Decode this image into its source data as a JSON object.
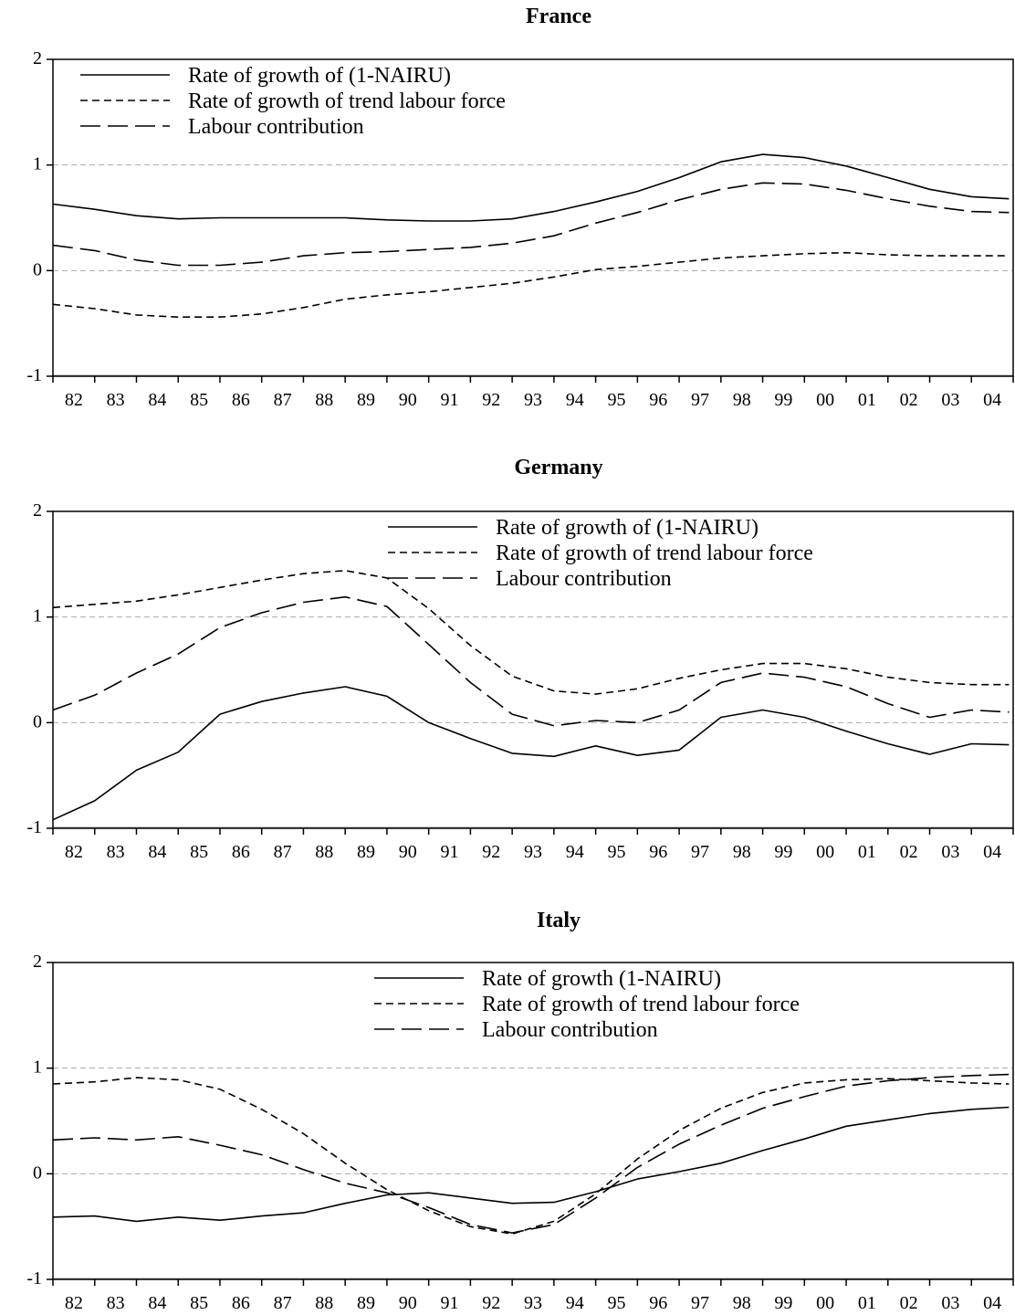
{
  "chart_data": [
    {
      "type": "line",
      "title": "France",
      "xlabel": "",
      "ylabel": "",
      "x_ticks": [
        "82",
        "83",
        "84",
        "85",
        "86",
        "87",
        "88",
        "89",
        "90",
        "91",
        "92",
        "93",
        "94",
        "95",
        "96",
        "97",
        "98",
        "99",
        "00",
        "01",
        "02",
        "03",
        "04"
      ],
      "xlim": [
        1982,
        2005
      ],
      "ylim": [
        -1,
        2
      ],
      "y_ticks": [
        -1,
        0,
        1,
        2
      ],
      "grid": "horizontal-dashed",
      "legend": "top-left",
      "x": [
        1982,
        1983,
        1984,
        1985,
        1986,
        1987,
        1988,
        1989,
        1990,
        1991,
        1992,
        1993,
        1994,
        1995,
        1996,
        1997,
        1998,
        1999,
        2000,
        2001,
        2002,
        2003,
        2004,
        2004.9
      ],
      "series": [
        {
          "name": "Rate of growth of (1-NAIRU)",
          "style": "solid",
          "values": [
            0.63,
            0.58,
            0.52,
            0.49,
            0.5,
            0.5,
            0.5,
            0.5,
            0.48,
            0.47,
            0.47,
            0.49,
            0.56,
            0.65,
            0.75,
            0.88,
            1.03,
            1.1,
            1.07,
            0.99,
            0.88,
            0.77,
            0.7,
            0.68
          ]
        },
        {
          "name": "Rate of growth of trend labour force",
          "style": "short-dash",
          "values": [
            -0.32,
            -0.36,
            -0.42,
            -0.44,
            -0.44,
            -0.41,
            -0.35,
            -0.27,
            -0.23,
            -0.2,
            -0.16,
            -0.12,
            -0.06,
            0.01,
            0.04,
            0.08,
            0.12,
            0.14,
            0.16,
            0.17,
            0.15,
            0.14,
            0.14,
            0.14
          ]
        },
        {
          "name": "Labour contribution",
          "style": "long-dash",
          "values": [
            0.24,
            0.19,
            0.1,
            0.05,
            0.05,
            0.08,
            0.14,
            0.17,
            0.18,
            0.2,
            0.22,
            0.26,
            0.33,
            0.45,
            0.55,
            0.67,
            0.77,
            0.83,
            0.82,
            0.76,
            0.68,
            0.61,
            0.56,
            0.55
          ]
        }
      ]
    },
    {
      "type": "line",
      "title": "Germany",
      "xlabel": "",
      "ylabel": "",
      "x_ticks": [
        "82",
        "83",
        "84",
        "85",
        "86",
        "87",
        "88",
        "89",
        "90",
        "91",
        "92",
        "93",
        "94",
        "95",
        "96",
        "97",
        "98",
        "99",
        "00",
        "01",
        "02",
        "03",
        "04"
      ],
      "xlim": [
        1982,
        2005
      ],
      "ylim": [
        -1,
        2
      ],
      "y_ticks": [
        -1,
        0,
        1,
        2
      ],
      "grid": "horizontal-dashed",
      "legend": "top-right",
      "x": [
        1982,
        1983,
        1984,
        1985,
        1986,
        1987,
        1988,
        1989,
        1990,
        1991,
        1992,
        1993,
        1994,
        1995,
        1996,
        1997,
        1998,
        1999,
        2000,
        2001,
        2002,
        2003,
        2004,
        2004.9
      ],
      "series": [
        {
          "name": "Rate of growth of (1-NAIRU)",
          "style": "solid",
          "values": [
            -0.92,
            -0.74,
            -0.45,
            -0.28,
            0.08,
            0.2,
            0.28,
            0.34,
            0.25,
            0.0,
            -0.15,
            -0.29,
            -0.32,
            -0.22,
            -0.31,
            -0.26,
            0.05,
            0.12,
            0.05,
            -0.08,
            -0.2,
            -0.3,
            -0.2,
            -0.21
          ]
        },
        {
          "name": "Rate of growth of trend labour force",
          "style": "short-dash",
          "values": [
            1.09,
            1.12,
            1.15,
            1.21,
            1.28,
            1.35,
            1.41,
            1.44,
            1.37,
            1.08,
            0.73,
            0.44,
            0.3,
            0.27,
            0.32,
            0.42,
            0.5,
            0.56,
            0.56,
            0.51,
            0.43,
            0.38,
            0.36,
            0.36
          ]
        },
        {
          "name": "Labour contribution",
          "style": "long-dash",
          "values": [
            0.12,
            0.26,
            0.47,
            0.65,
            0.9,
            1.04,
            1.14,
            1.19,
            1.1,
            0.74,
            0.38,
            0.08,
            -0.03,
            0.02,
            0.0,
            0.12,
            0.38,
            0.47,
            0.43,
            0.34,
            0.18,
            0.05,
            0.12,
            0.1
          ]
        }
      ]
    },
    {
      "type": "line",
      "title": "Italy",
      "xlabel": "",
      "ylabel": "",
      "x_ticks": [
        "82",
        "83",
        "84",
        "85",
        "86",
        "87",
        "88",
        "89",
        "90",
        "91",
        "92",
        "93",
        "94",
        "95",
        "96",
        "97",
        "98",
        "99",
        "00",
        "01",
        "02",
        "03",
        "04"
      ],
      "xlim": [
        1982,
        2005
      ],
      "ylim": [
        -1,
        2
      ],
      "y_ticks": [
        -1,
        0,
        1,
        2
      ],
      "grid": "horizontal-dashed",
      "legend": "top-right",
      "x": [
        1982,
        1983,
        1984,
        1985,
        1986,
        1987,
        1988,
        1989,
        1990,
        1991,
        1992,
        1993,
        1994,
        1995,
        1996,
        1997,
        1998,
        1999,
        2000,
        2001,
        2002,
        2003,
        2004,
        2004.9
      ],
      "series": [
        {
          "name": "Rate of growth (1-NAIRU)",
          "style": "solid",
          "values": [
            -0.41,
            -0.4,
            -0.45,
            -0.41,
            -0.44,
            -0.4,
            -0.37,
            -0.28,
            -0.2,
            -0.18,
            -0.23,
            -0.28,
            -0.27,
            -0.17,
            -0.05,
            0.02,
            0.1,
            0.22,
            0.33,
            0.45,
            0.51,
            0.57,
            0.61,
            0.63
          ]
        },
        {
          "name": "Rate of growth of trend labour force",
          "style": "short-dash",
          "values": [
            0.85,
            0.87,
            0.91,
            0.89,
            0.8,
            0.61,
            0.38,
            0.1,
            -0.15,
            -0.35,
            -0.5,
            -0.57,
            -0.45,
            -0.19,
            0.14,
            0.41,
            0.62,
            0.77,
            0.86,
            0.89,
            0.9,
            0.88,
            0.86,
            0.85
          ]
        },
        {
          "name": "Labour contribution",
          "style": "long-dash",
          "values": [
            0.32,
            0.34,
            0.32,
            0.35,
            0.27,
            0.18,
            0.04,
            -0.09,
            -0.18,
            -0.32,
            -0.48,
            -0.56,
            -0.48,
            -0.23,
            0.06,
            0.28,
            0.46,
            0.62,
            0.73,
            0.83,
            0.88,
            0.91,
            0.93,
            0.94
          ]
        }
      ]
    }
  ]
}
